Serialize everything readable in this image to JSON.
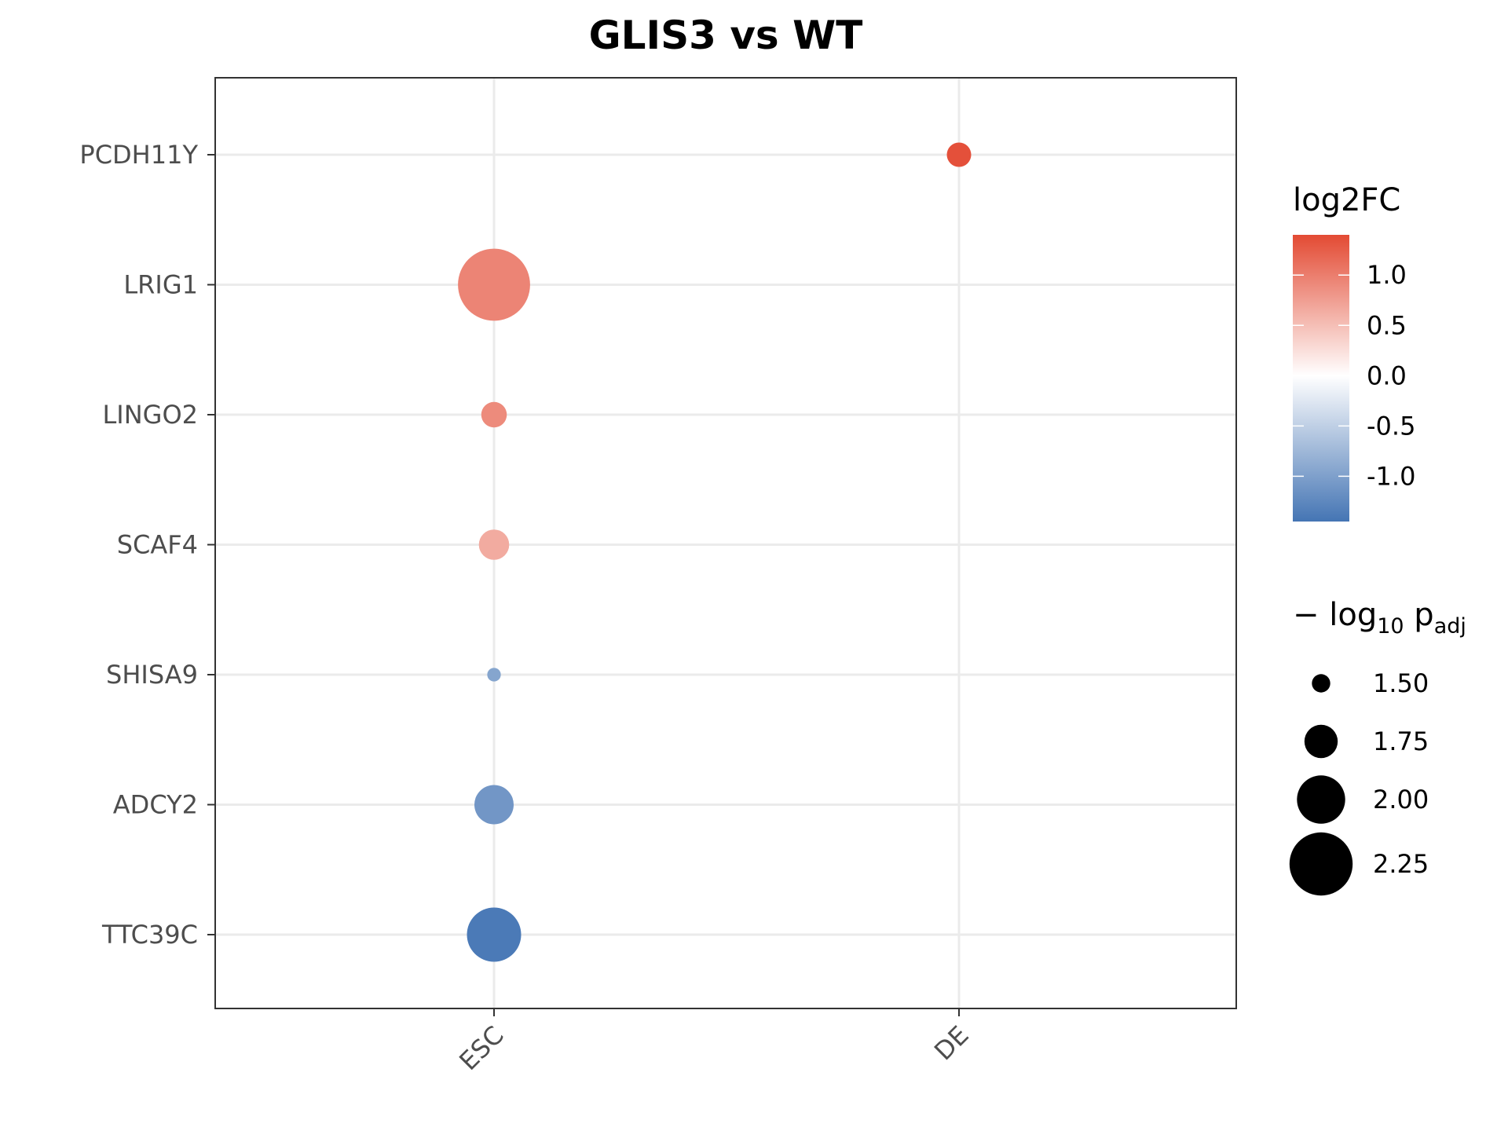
{
  "chart_data": {
    "type": "scatter",
    "title": "GLIS3 vs WT",
    "xlabel": "",
    "ylabel": "",
    "x_categories": [
      "ESC",
      "DE"
    ],
    "y_categories": [
      "PCDH11Y",
      "LRIG1",
      "LINGO2",
      "SCAF4",
      "SHISA9",
      "ADCY2",
      "TTC39C"
    ],
    "points": [
      {
        "gene": "PCDH11Y",
        "stage": "DE",
        "log2FC": 1.35,
        "neglog10_padj": 1.6
      },
      {
        "gene": "LRIG1",
        "stage": "ESC",
        "log2FC": 0.95,
        "neglog10_padj": 2.4
      },
      {
        "gene": "LINGO2",
        "stage": "ESC",
        "log2FC": 0.9,
        "neglog10_padj": 1.62
      },
      {
        "gene": "SCAF4",
        "stage": "ESC",
        "log2FC": 0.65,
        "neglog10_padj": 1.7
      },
      {
        "gene": "SHISA9",
        "stage": "ESC",
        "log2FC": -0.95,
        "neglog10_padj": 1.42
      },
      {
        "gene": "ADCY2",
        "stage": "ESC",
        "log2FC": -1.1,
        "neglog10_padj": 1.85
      },
      {
        "gene": "TTC39C",
        "stage": "ESC",
        "log2FC": -1.4,
        "neglog10_padj": 2.1
      }
    ],
    "grid": true,
    "color_legend": {
      "title": "log2FC",
      "ticks": [
        "1.0",
        "0.5",
        "0.0",
        "-0.5",
        "-1.0"
      ],
      "tick_values": [
        1.0,
        0.5,
        0.0,
        -0.5,
        -1.0
      ],
      "range": [
        -1.45,
        1.4
      ],
      "low_color": "#4575b4",
      "mid_color": "#ffffff",
      "high_color": "#e34a33"
    },
    "size_legend": {
      "title_main": "− log",
      "title_sub": "10",
      "title_p": " p",
      "title_p_sub": "adj",
      "labels": [
        "1.50",
        "1.75",
        "2.00",
        "2.25"
      ],
      "values": [
        1.5,
        1.75,
        2.0,
        2.25
      ]
    },
    "colors": {
      "gridline": "#ebebeb",
      "panel_border": "#333333",
      "tick_label": "#4d4d4d"
    }
  }
}
